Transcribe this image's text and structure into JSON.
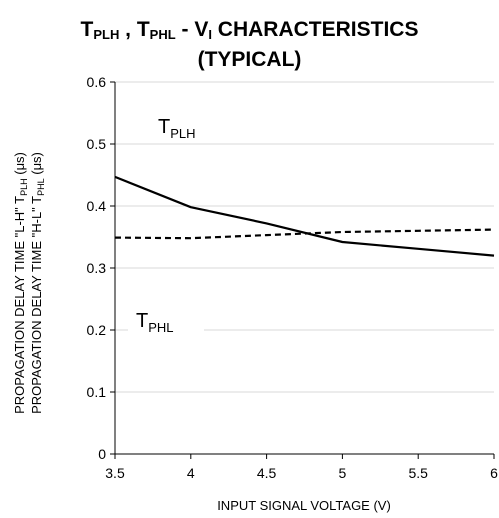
{
  "chart_data": {
    "type": "line",
    "title": {
      "parts": [
        {
          "text": "T",
          "sub": "PLH"
        },
        {
          "text": " , T",
          "sub": "PHL"
        },
        {
          "text": " - V",
          "sub": "I"
        },
        {
          "text": " CHARACTERISTICS",
          "sub": ""
        }
      ],
      "line2": "(TYPICAL)"
    },
    "xlabel": "INPUT SIGNAL VOLTAGE (V)",
    "ylabel_line1": {
      "main": "PROPAGATION DELAY TIME \"L-H\" T",
      "sub": "PLH",
      "unit": " (μs)"
    },
    "ylabel_line2": {
      "main": "PROPAGATION DELAY TIME \"H-L\" T",
      "sub": "PHL",
      "unit": " (μs)"
    },
    "xlim": [
      3.5,
      6
    ],
    "ylim": [
      0,
      0.6
    ],
    "x_ticks": [
      "3.5",
      "4",
      "4.5",
      "5",
      "5.5",
      "6"
    ],
    "y_ticks": [
      "0",
      "0.1",
      "0.2",
      "0.3",
      "0.4",
      "0.5",
      "0.6"
    ],
    "grid": "horizontal",
    "series": [
      {
        "name": "T_PLH",
        "style": "solid",
        "color": "#000000",
        "x": [
          3.5,
          4,
          4.5,
          5,
          5.5,
          6
        ],
        "y": [
          0.447,
          0.398,
          0.372,
          0.342,
          0.331,
          0.32
        ]
      },
      {
        "name": "T_PHL",
        "style": "dashed",
        "color": "#000000",
        "x": [
          3.5,
          4,
          4.5,
          5,
          5.5,
          6
        ],
        "y": [
          0.349,
          0.348,
          0.353,
          0.358,
          0.36,
          0.362
        ]
      }
    ],
    "annotations": [
      {
        "text": "T",
        "sub": "PLH"
      },
      {
        "text": "T",
        "sub": "PHL"
      }
    ]
  }
}
